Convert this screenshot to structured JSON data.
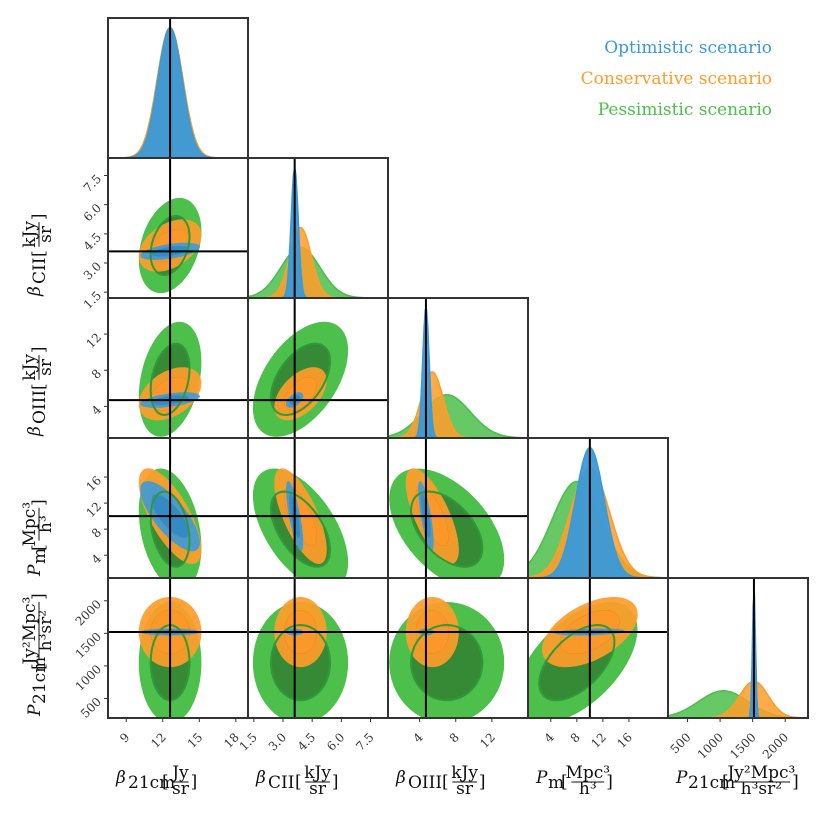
{
  "chart_data": {
    "type": "corner",
    "parameters": [
      {
        "key": "b21",
        "label": "β21cm",
        "unit": "Jy/sr",
        "truth": 12.6,
        "range": [
          7.5,
          19
        ],
        "ticks": [
          9,
          12,
          15,
          18
        ]
      },
      {
        "key": "bcii",
        "label": "βCII",
        "unit": "kJy/sr",
        "truth": 3.6,
        "range": [
          1.2,
          8.4
        ],
        "ticks": [
          1.5,
          3.0,
          4.5,
          6.0,
          7.5
        ]
      },
      {
        "key": "boiii",
        "label": "βOIII",
        "unit": "kJy/sr",
        "truth": 4.7,
        "range": [
          0.5,
          16
        ],
        "ticks": [
          4,
          8,
          12
        ]
      },
      {
        "key": "pm",
        "label": "Pm",
        "unit": "Mpc³/h³",
        "truth": 10,
        "range": [
          0.5,
          22
        ],
        "ticks": [
          4,
          8,
          12,
          16
        ]
      },
      {
        "key": "p21",
        "label": "P21cm",
        "unit": "Jy²Mpc³/(h³sr²)",
        "truth": 1520,
        "range": [
          200,
          2350
        ],
        "ticks": [
          500,
          1000,
          1500,
          2000
        ]
      }
    ],
    "tick_labels": {
      "b21": [
        "9",
        "12",
        "15",
        "18"
      ],
      "bcii": [
        "1.5",
        "3.0",
        "4.5",
        "6.0",
        "7.5"
      ],
      "boiii": [
        "4",
        "8",
        "12"
      ],
      "pm": [
        "4",
        "8",
        "12",
        "16"
      ],
      "p21": [
        "500",
        "1000",
        "1500",
        "2000"
      ]
    },
    "axis_labels": {
      "b21": {
        "sym": "β",
        "sub": "21cm",
        "num": "Jy",
        "den": "sr"
      },
      "bcii": {
        "sym": "β",
        "sub": "CII",
        "num": "kJy",
        "den": "sr"
      },
      "boiii": {
        "sym": "β",
        "sub": "OIII",
        "num": "kJy",
        "den": "sr"
      },
      "pm": {
        "sym": "P",
        "sub": "m",
        "num": "Mpc³",
        "den": "h³"
      },
      "p21": {
        "sym": "P",
        "sub": "21cm",
        "num": "Jy²Mpc³",
        "den": "h³sr²"
      }
    },
    "series": [
      {
        "name": "Optimistic scenario",
        "color": "#3a9ad9",
        "sigma": {
          "b21": 1.0,
          "bcii": 0.18,
          "boiii": 0.35,
          "pm": 2.2,
          "p21": 22
        },
        "mean": {
          "b21": 12.6,
          "bcii": 3.6,
          "boiii": 4.7,
          "pm": 10,
          "p21": 1520
        },
        "rho": {
          "b21-pm": -0.75,
          "bcii-pm": -0.75,
          "boiii-pm": -0.75,
          "b21-bcii": 0.5,
          "b21-boiii": 0.5,
          "bcii-boiii": 0.5,
          "pm-p21": 0.3
        }
      },
      {
        "name": "Conservative scenario",
        "color": "#ff9c2a",
        "sigma": {
          "b21": 1.05,
          "bcii": 0.55,
          "boiii": 1.2,
          "pm": 3.0,
          "p21": 220
        },
        "mean": {
          "b21": 12.6,
          "bcii": 3.9,
          "boiii": 5.4,
          "pm": 10,
          "p21": 1520
        },
        "rho": {
          "b21-pm": -0.7,
          "bcii-pm": -0.7,
          "boiii-pm": -0.7,
          "b21-bcii": 0.4,
          "b21-boiii": 0.4,
          "bcii-boiii": 0.5,
          "pm-p21": 0.5
        }
      },
      {
        "name": "Pessimistic scenario",
        "color": "#4cc04a",
        "sigma": {
          "b21": 1.05,
          "bcii": 1.0,
          "boiii": 2.6,
          "pm": 3.8,
          "p21": 380
        },
        "mean": {
          "b21": 12.6,
          "bcii": 3.9,
          "boiii": 7.0,
          "pm": 8.0,
          "p21": 1050
        },
        "rho": {
          "b21-pm": -0.3,
          "bcii-pm": -0.55,
          "boiii-pm": -0.5,
          "b21-bcii": 0.3,
          "b21-boiii": 0.3,
          "bcii-boiii": 0.5,
          "pm-p21": 0.55
        }
      }
    ],
    "legend": "top-right",
    "grid": false
  }
}
